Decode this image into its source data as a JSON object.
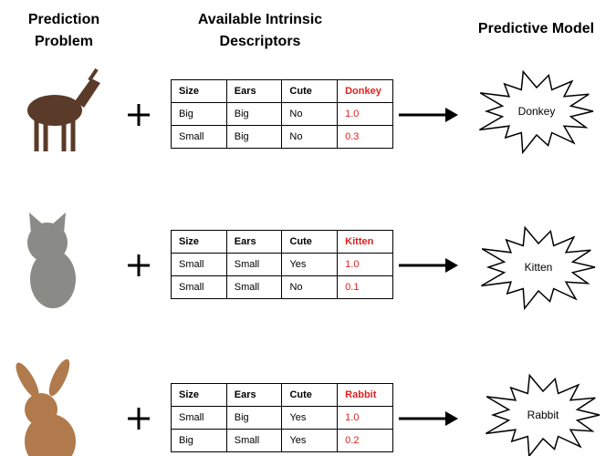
{
  "headers": {
    "problem": "Prediction Problem",
    "descriptors": "Available Intrinsic Descriptors",
    "model": "Predictive Model"
  },
  "rows": [
    {
      "animal": "donkey",
      "table": {
        "columns": [
          "Size",
          "Ears",
          "Cute",
          "Donkey"
        ],
        "rows": [
          [
            "Big",
            "Big",
            "No",
            "1.0"
          ],
          [
            "Small",
            "Big",
            "No",
            "0.3"
          ]
        ]
      },
      "model": "Donkey"
    },
    {
      "animal": "kitten",
      "table": {
        "columns": [
          "Size",
          "Ears",
          "Cute",
          "Kitten"
        ],
        "rows": [
          [
            "Small",
            "Small",
            "Yes",
            "1.0"
          ],
          [
            "Small",
            "Small",
            "No",
            "0.1"
          ]
        ]
      },
      "model": "Kitten"
    },
    {
      "animal": "rabbit",
      "table": {
        "columns": [
          "Size",
          "Ears",
          "Cute",
          "Rabbit"
        ],
        "rows": [
          [
            "Small",
            "Big",
            "Yes",
            "1.0"
          ],
          [
            "Big",
            "Small",
            "Yes",
            "0.2"
          ]
        ]
      },
      "model": "Rabbit"
    }
  ]
}
